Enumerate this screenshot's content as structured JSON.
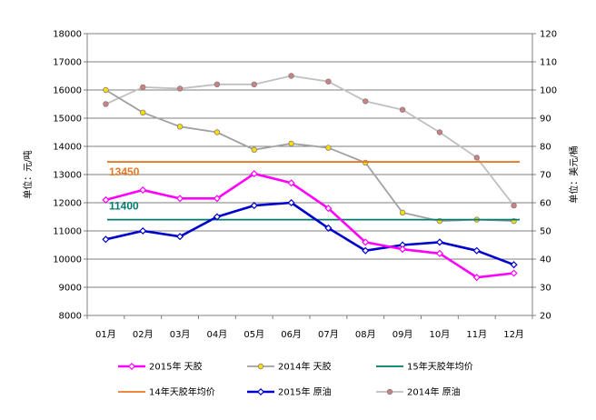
{
  "chart_data": {
    "type": "line",
    "categories": [
      "01月",
      "02月",
      "03月",
      "04月",
      "05月",
      "06月",
      "07月",
      "08月",
      "09月",
      "10月",
      "11月",
      "12月"
    ],
    "y_left": {
      "label": "单位：元/吨",
      "ylim": [
        8000,
        18000
      ],
      "ticks": [
        8000,
        9000,
        10000,
        11000,
        12000,
        13000,
        14000,
        15000,
        16000,
        17000,
        18000
      ]
    },
    "y_right": {
      "label": "单位：美元/桶",
      "ylim": [
        20,
        120
      ],
      "ticks": [
        20,
        30,
        40,
        50,
        60,
        70,
        80,
        90,
        100,
        110,
        120
      ]
    },
    "grid": "horizontal",
    "legend_position": "bottom",
    "series": [
      {
        "name": "2015年 天胶",
        "axis": "left",
        "color": "#ff00ff",
        "marker": "diamond",
        "marker_fill": "#ffffff",
        "values": [
          12100,
          12450,
          12150,
          12150,
          13030,
          12700,
          11800,
          10600,
          10350,
          10200,
          9350,
          9500
        ]
      },
      {
        "name": "2014年 天胶",
        "axis": "left",
        "color": "#a0a0a0",
        "marker": "circle",
        "marker_fill": "#ffdd00",
        "values": [
          16000,
          15200,
          14700,
          14500,
          13880,
          14100,
          13950,
          13420,
          11650,
          11350,
          11400,
          11350
        ]
      },
      {
        "name": "15年天胶年均价",
        "axis": "left",
        "color": "#007a6e",
        "marker": "none",
        "values": [
          11400,
          11400,
          11400,
          11400,
          11400,
          11400,
          11400,
          11400,
          11400,
          11400,
          11400,
          11400
        ]
      },
      {
        "name": "14年天胶年均价",
        "axis": "left",
        "color": "#e87722",
        "marker": "none",
        "values": [
          13450,
          13450,
          13450,
          13450,
          13450,
          13450,
          13450,
          13450,
          13450,
          13450,
          13450,
          13450
        ]
      },
      {
        "name": "2015年 原油",
        "axis": "right",
        "color": "#0000cc",
        "marker": "diamond",
        "marker_fill": "#ffffff",
        "values": [
          47,
          50,
          48,
          55,
          59,
          60,
          51,
          43,
          45,
          46,
          43,
          38
        ]
      },
      {
        "name": "2014年 原油",
        "axis": "right",
        "color": "#c0c0c0",
        "marker": "circle",
        "marker_fill": "#d08080",
        "values": [
          95,
          101,
          100.5,
          102,
          102,
          105,
          103,
          96,
          93,
          85,
          76,
          59
        ]
      }
    ],
    "annotations": [
      {
        "text": "13450",
        "value": 13450,
        "color": "#e87722"
      },
      {
        "text": "11400",
        "value": 11400,
        "color": "#007a6e"
      }
    ]
  }
}
